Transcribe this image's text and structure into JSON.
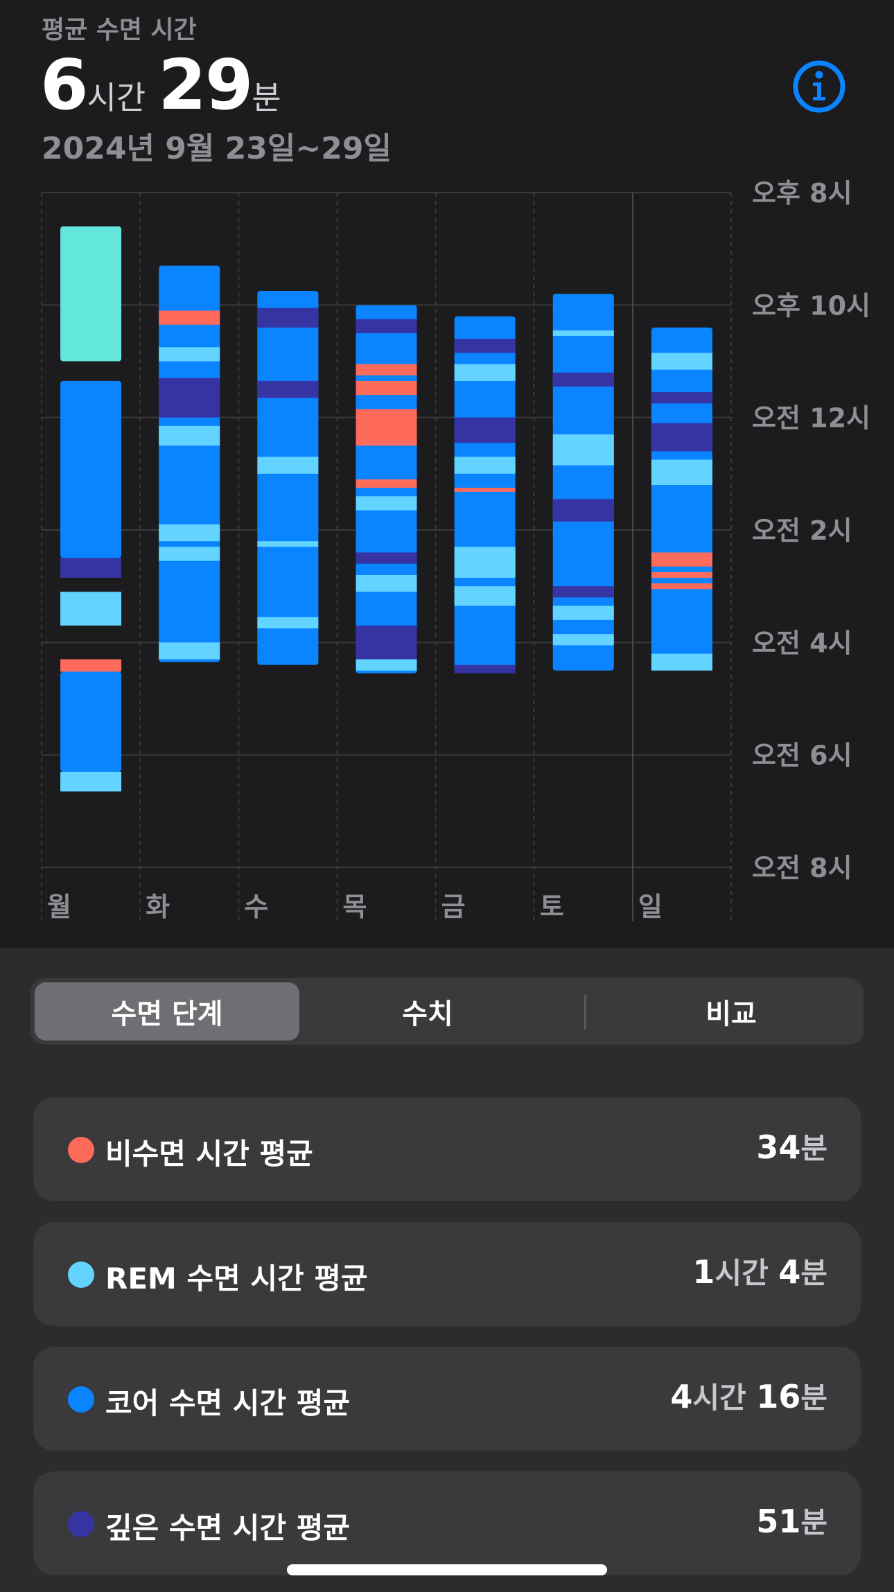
{
  "summary": {
    "label": "평균 수면 시간",
    "hours": "6",
    "hours_unit": "시간",
    "minutes": "29",
    "minutes_unit": "분",
    "date_range": "2024년 9월 23일~29일"
  },
  "colors": {
    "awake": "#ff6b5b",
    "rem": "#62d4ff",
    "core": "#0a84ff",
    "deep": "#3634a3",
    "first_segment_rem": "#63e6dc",
    "background": "#1c1c1e",
    "grid": "#3a3a3c",
    "info": "#0a84ff"
  },
  "chart_data": {
    "type": "bar",
    "orientation": "vertical-timeline",
    "y_axis_labels": [
      "오후 8시",
      "오후 10시",
      "오전 12시",
      "오전 2시",
      "오전 4시",
      "오전 6시",
      "오전 8시"
    ],
    "y_range_hours": [
      20,
      32
    ],
    "categories": [
      "월",
      "화",
      "수",
      "목",
      "금",
      "토",
      "일"
    ],
    "days": [
      {
        "day": "월",
        "segments": [
          {
            "stage": "rem_first",
            "start": 20.6,
            "end": 23.0
          },
          {
            "stage": "core",
            "start": 23.35,
            "end": 26.5
          },
          {
            "stage": "deep",
            "start": 26.5,
            "end": 26.85
          },
          {
            "stage": "rem",
            "start": 27.1,
            "end": 27.7
          },
          {
            "stage": "awake",
            "start": 28.3,
            "end": 28.52
          },
          {
            "stage": "core",
            "start": 28.52,
            "end": 30.3
          },
          {
            "stage": "rem",
            "start": 30.3,
            "end": 30.65
          }
        ]
      },
      {
        "day": "화",
        "segments": [
          {
            "stage": "core",
            "start": 21.3,
            "end": 28.35
          },
          {
            "stage": "awake",
            "start": 22.1,
            "end": 22.35
          },
          {
            "stage": "rem",
            "start": 22.75,
            "end": 23.0
          },
          {
            "stage": "deep",
            "start": 23.3,
            "end": 24.0
          },
          {
            "stage": "rem",
            "start": 24.15,
            "end": 24.5
          },
          {
            "stage": "rem",
            "start": 25.9,
            "end": 26.2
          },
          {
            "stage": "rem",
            "start": 26.3,
            "end": 26.55
          },
          {
            "stage": "rem",
            "start": 28.0,
            "end": 28.3
          }
        ]
      },
      {
        "day": "수",
        "segments": [
          {
            "stage": "core",
            "start": 21.75,
            "end": 28.4
          },
          {
            "stage": "deep",
            "start": 22.05,
            "end": 22.4
          },
          {
            "stage": "deep",
            "start": 23.35,
            "end": 23.65
          },
          {
            "stage": "rem",
            "start": 24.7,
            "end": 25.0
          },
          {
            "stage": "rem",
            "start": 26.2,
            "end": 26.3
          },
          {
            "stage": "rem",
            "start": 27.55,
            "end": 27.75
          }
        ]
      },
      {
        "day": "목",
        "segments": [
          {
            "stage": "core",
            "start": 22.0,
            "end": 28.55
          },
          {
            "stage": "deep",
            "start": 22.25,
            "end": 22.5
          },
          {
            "stage": "awake",
            "start": 23.05,
            "end": 23.25
          },
          {
            "stage": "awake",
            "start": 23.35,
            "end": 23.6
          },
          {
            "stage": "awake",
            "start": 23.85,
            "end": 24.5
          },
          {
            "stage": "awake",
            "start": 25.1,
            "end": 25.25
          },
          {
            "stage": "rem",
            "start": 25.4,
            "end": 25.65
          },
          {
            "stage": "deep",
            "start": 26.4,
            "end": 26.6
          },
          {
            "stage": "rem",
            "start": 26.8,
            "end": 27.1
          },
          {
            "stage": "deep",
            "start": 27.7,
            "end": 28.3
          },
          {
            "stage": "rem",
            "start": 28.3,
            "end": 28.5
          }
        ]
      },
      {
        "day": "금",
        "segments": [
          {
            "stage": "core",
            "start": 22.2,
            "end": 28.55
          },
          {
            "stage": "deep",
            "start": 22.6,
            "end": 22.85
          },
          {
            "stage": "rem",
            "start": 23.05,
            "end": 23.35
          },
          {
            "stage": "deep",
            "start": 24.0,
            "end": 24.45
          },
          {
            "stage": "rem",
            "start": 24.7,
            "end": 25.0
          },
          {
            "stage": "awake",
            "start": 25.25,
            "end": 25.32
          },
          {
            "stage": "rem",
            "start": 26.3,
            "end": 26.85
          },
          {
            "stage": "rem",
            "start": 27.0,
            "end": 27.35
          },
          {
            "stage": "deep",
            "start": 28.4,
            "end": 28.55
          }
        ]
      },
      {
        "day": "토",
        "segments": [
          {
            "stage": "core",
            "start": 21.8,
            "end": 28.5
          },
          {
            "stage": "rem",
            "start": 22.45,
            "end": 22.55
          },
          {
            "stage": "deep",
            "start": 23.2,
            "end": 23.45
          },
          {
            "stage": "rem",
            "start": 24.3,
            "end": 24.85
          },
          {
            "stage": "deep",
            "start": 25.45,
            "end": 25.85
          },
          {
            "stage": "deep",
            "start": 27.0,
            "end": 27.2
          },
          {
            "stage": "rem",
            "start": 27.35,
            "end": 27.6
          },
          {
            "stage": "rem",
            "start": 27.85,
            "end": 28.05
          }
        ]
      },
      {
        "day": "일",
        "segments": [
          {
            "stage": "core",
            "start": 22.4,
            "end": 28.5
          },
          {
            "stage": "rem",
            "start": 22.85,
            "end": 23.15
          },
          {
            "stage": "deep",
            "start": 23.55,
            "end": 23.75
          },
          {
            "stage": "deep",
            "start": 24.1,
            "end": 24.6
          },
          {
            "stage": "rem",
            "start": 24.75,
            "end": 25.2
          },
          {
            "stage": "awake",
            "start": 26.4,
            "end": 26.65
          },
          {
            "stage": "awake",
            "start": 26.75,
            "end": 26.85
          },
          {
            "stage": "awake",
            "start": 26.95,
            "end": 27.05
          },
          {
            "stage": "rem",
            "start": 28.2,
            "end": 28.5
          }
        ]
      }
    ]
  },
  "tabs": [
    {
      "label": "수면 단계",
      "active": true
    },
    {
      "label": "수치",
      "active": false
    },
    {
      "label": "비교",
      "active": false
    }
  ],
  "stats": [
    {
      "label": "비수면 시간 평균",
      "color": "#ff6b5b",
      "value_parts": [
        {
          "num": "34",
          "unit": "분"
        }
      ]
    },
    {
      "label": "REM 수면 시간 평균",
      "color": "#62d4ff",
      "value_parts": [
        {
          "num": "1",
          "unit": "시간 "
        },
        {
          "num": "4",
          "unit": "분"
        }
      ]
    },
    {
      "label": "코어 수면 시간 평균",
      "color": "#0a84ff",
      "value_parts": [
        {
          "num": "4",
          "unit": "시간 "
        },
        {
          "num": "16",
          "unit": "분"
        }
      ]
    },
    {
      "label": "깊은 수면 시간 평균",
      "color": "#3634a3",
      "value_parts": [
        {
          "num": "51",
          "unit": "분"
        }
      ]
    }
  ]
}
